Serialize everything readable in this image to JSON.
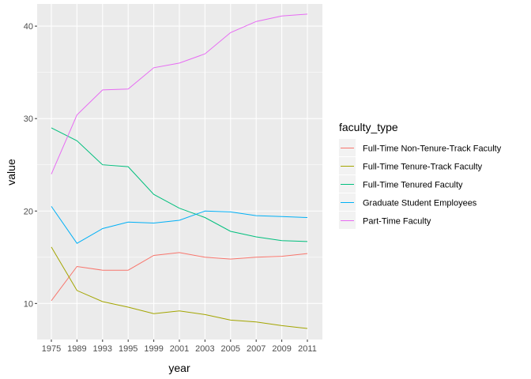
{
  "chart_data": {
    "type": "line",
    "x": [
      "1975",
      "1989",
      "1993",
      "1995",
      "1999",
      "2001",
      "2003",
      "2005",
      "2007",
      "2009",
      "2011"
    ],
    "xlabel": "year",
    "ylabel": "value",
    "ylim": [
      6.1,
      42.4
    ],
    "yticks": [
      10,
      20,
      30,
      40
    ],
    "grid": true,
    "legend_title": "faculty_type",
    "legend_position": "right",
    "series": [
      {
        "name": "Full-Time Non-Tenure-Track Faculty",
        "color": "#F8766D",
        "values": [
          10.3,
          14.0,
          13.6,
          13.6,
          15.2,
          15.5,
          15.0,
          14.8,
          15.0,
          15.1,
          15.4
        ]
      },
      {
        "name": "Full-Time Tenure-Track Faculty",
        "color": "#A3A500",
        "values": [
          16.1,
          11.4,
          10.2,
          9.6,
          8.9,
          9.2,
          8.8,
          8.2,
          8.0,
          7.6,
          7.3
        ]
      },
      {
        "name": "Full-Time Tenured Faculty",
        "color": "#00BF7D",
        "values": [
          29.0,
          27.6,
          25.0,
          24.8,
          21.8,
          20.3,
          19.3,
          17.8,
          17.2,
          16.8,
          16.7
        ]
      },
      {
        "name": "Graduate Student Employees",
        "color": "#00B0F6",
        "values": [
          20.5,
          16.5,
          18.1,
          18.8,
          18.7,
          19.0,
          20.0,
          19.9,
          19.5,
          19.4,
          19.3
        ]
      },
      {
        "name": "Part-Time Faculty",
        "color": "#E76BF3",
        "values": [
          24.0,
          30.4,
          33.1,
          33.2,
          35.5,
          36.0,
          37.0,
          39.3,
          40.5,
          41.1,
          41.3
        ]
      }
    ]
  }
}
